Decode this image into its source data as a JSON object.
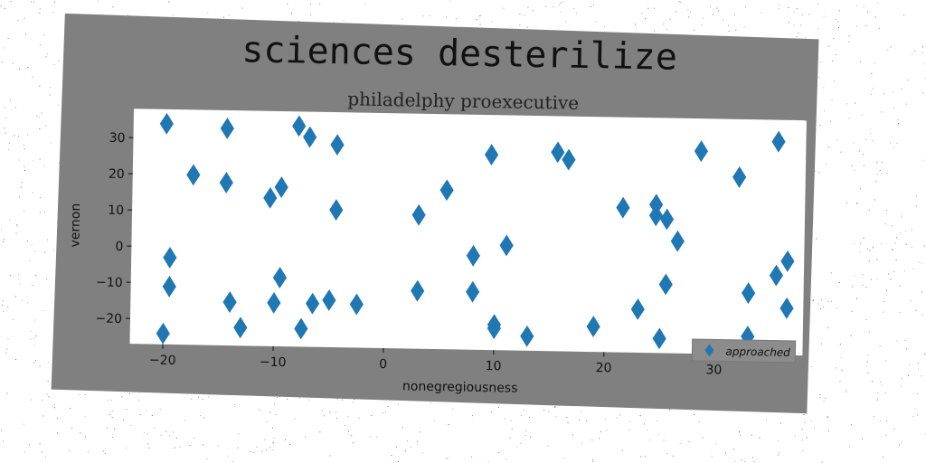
{
  "chart_data": {
    "type": "scatter",
    "title": "sciences desterilize",
    "subtitle": "philadelphy proexecutive",
    "xlabel": "nonegregiousness",
    "ylabel": "vernon",
    "xlim": [
      -23,
      38
    ],
    "ylim": [
      -27,
      38
    ],
    "xticks": [
      -20,
      -10,
      0,
      10,
      20,
      30
    ],
    "yticks": [
      -20,
      -10,
      0,
      10,
      20,
      30
    ],
    "legend": "bottom-right",
    "grid": false,
    "colors": {
      "background": "#ffffff",
      "figure": "#808080",
      "marker": "#1f77b4",
      "text": "#111111",
      "legend_bg": "#8c8c8c"
    },
    "series": [
      {
        "name": "approached",
        "marker": "thin_diamond",
        "points": [
          [
            -20,
            34
          ],
          [
            -17.5,
            20
          ],
          [
            -19.5,
            -3
          ],
          [
            -19.5,
            -11
          ],
          [
            -20,
            -24
          ],
          [
            -14.5,
            33
          ],
          [
            -14.5,
            18
          ],
          [
            -14,
            -15
          ],
          [
            -13,
            -22
          ],
          [
            -10.5,
            14
          ],
          [
            -9.5,
            17
          ],
          [
            -9.5,
            -8
          ],
          [
            -10,
            -15
          ],
          [
            -8,
            34
          ],
          [
            -7,
            31
          ],
          [
            -6.5,
            -15
          ],
          [
            -7.5,
            -22
          ],
          [
            -4.5,
            29
          ],
          [
            -4.5,
            11
          ],
          [
            -5,
            -14
          ],
          [
            -2.5,
            -15
          ],
          [
            3,
            10
          ],
          [
            3,
            -11
          ],
          [
            5.5,
            17
          ],
          [
            9.5,
            27
          ],
          [
            8,
            -1
          ],
          [
            8,
            -11
          ],
          [
            10,
            -20
          ],
          [
            10,
            -21
          ],
          [
            11,
            2
          ],
          [
            13,
            -23
          ],
          [
            15.5,
            28
          ],
          [
            16.5,
            26
          ],
          [
            19,
            -20
          ],
          [
            21.5,
            13
          ],
          [
            23,
            -15
          ],
          [
            24.5,
            14
          ],
          [
            24.5,
            11
          ],
          [
            25.5,
            10
          ],
          [
            26.5,
            4
          ],
          [
            25.5,
            -8
          ],
          [
            25,
            -23
          ],
          [
            28.5,
            29
          ],
          [
            32,
            22
          ],
          [
            33,
            -10
          ],
          [
            33,
            -22
          ],
          [
            35.5,
            32
          ],
          [
            35.5,
            -5
          ],
          [
            36.5,
            -1
          ],
          [
            36.5,
            -14
          ]
        ]
      }
    ]
  }
}
